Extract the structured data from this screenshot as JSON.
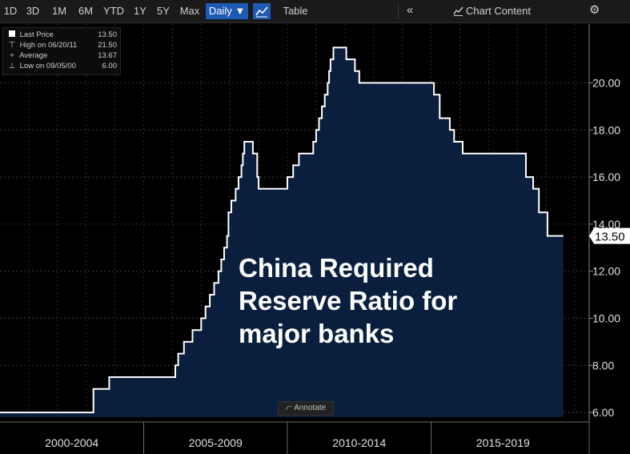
{
  "toolbar": {
    "ranges": [
      "1D",
      "3D",
      "1M",
      "6M",
      "YTD",
      "1Y",
      "5Y",
      "Max"
    ],
    "frequency": "Daily ▼",
    "table_label": "Table",
    "collapse_label": "«",
    "chart_content_label": "Chart Content",
    "settings_label": "⚙"
  },
  "legend": {
    "last_price": {
      "label": "Last Price",
      "value": "13.50"
    },
    "high": {
      "label": "High on 06/20/11",
      "value": "21.50"
    },
    "average": {
      "label": "Average",
      "value": "13.67"
    },
    "low": {
      "label": "Low on 09/05/00",
      "value": "6.00"
    }
  },
  "annotate_label": "Annotate",
  "chart_data": {
    "type": "area",
    "title": "China Required Reserve Ratio for major banks",
    "xlabel": "",
    "ylabel": "",
    "ylim": [
      5.8,
      22.5
    ],
    "xlim": [
      2000.0,
      2020.5
    ],
    "y_ticks": [
      "6.00",
      "8.00",
      "10.00",
      "12.00",
      "14.00",
      "16.00",
      "18.00",
      "20.00"
    ],
    "y_tick_values": [
      6,
      8,
      10,
      12,
      14,
      16,
      18,
      20
    ],
    "periods": [
      "2000-2004",
      "2005-2009",
      "2010-2014",
      "2015-2019"
    ],
    "period_ranges": [
      [
        2000,
        2005
      ],
      [
        2005,
        2010
      ],
      [
        2010,
        2015
      ],
      [
        2015,
        2020
      ]
    ],
    "last_value_label": "13.50",
    "line_color": "#ffffff",
    "fill_color": "#0a1f3d",
    "grid": true,
    "series": [
      {
        "values": [
          [
            2000.0,
            6.0
          ],
          [
            2003.25,
            7.0
          ],
          [
            2003.8,
            7.5
          ],
          [
            2006.1,
            8.0
          ],
          [
            2006.2,
            8.5
          ],
          [
            2006.4,
            9.0
          ],
          [
            2006.7,
            9.5
          ],
          [
            2007.0,
            10.0
          ],
          [
            2007.15,
            10.5
          ],
          [
            2007.3,
            11.0
          ],
          [
            2007.45,
            11.5
          ],
          [
            2007.6,
            12.0
          ],
          [
            2007.7,
            12.5
          ],
          [
            2007.8,
            13.0
          ],
          [
            2007.9,
            13.5
          ],
          [
            2007.95,
            14.5
          ],
          [
            2008.05,
            15.0
          ],
          [
            2008.2,
            15.5
          ],
          [
            2008.3,
            16.0
          ],
          [
            2008.4,
            16.5
          ],
          [
            2008.45,
            17.0
          ],
          [
            2008.5,
            17.5
          ],
          [
            2008.8,
            17.0
          ],
          [
            2008.95,
            16.0
          ],
          [
            2009.0,
            15.5
          ],
          [
            2010.0,
            16.0
          ],
          [
            2010.2,
            16.5
          ],
          [
            2010.4,
            17.0
          ],
          [
            2010.9,
            17.5
          ],
          [
            2011.0,
            18.0
          ],
          [
            2011.1,
            18.5
          ],
          [
            2011.2,
            19.0
          ],
          [
            2011.3,
            19.5
          ],
          [
            2011.4,
            20.0
          ],
          [
            2011.45,
            20.5
          ],
          [
            2011.5,
            21.0
          ],
          [
            2011.6,
            21.5
          ],
          [
            2012.05,
            21.0
          ],
          [
            2012.35,
            20.5
          ],
          [
            2012.5,
            20.0
          ],
          [
            2015.1,
            19.5
          ],
          [
            2015.3,
            18.5
          ],
          [
            2015.65,
            18.0
          ],
          [
            2015.8,
            17.5
          ],
          [
            2016.1,
            17.0
          ],
          [
            2018.3,
            16.0
          ],
          [
            2018.55,
            15.5
          ],
          [
            2018.75,
            14.5
          ],
          [
            2019.05,
            13.5
          ],
          [
            2019.6,
            13.5
          ]
        ]
      }
    ]
  }
}
